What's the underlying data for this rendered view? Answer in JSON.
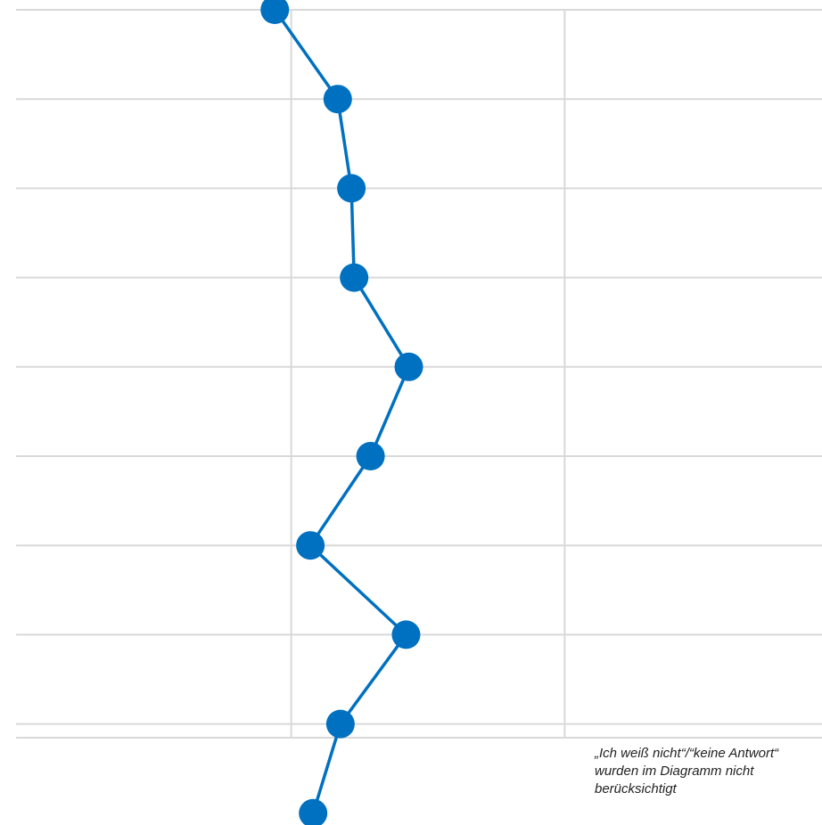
{
  "chart_data": {
    "type": "line",
    "orientation": "vertical-profile",
    "grid": true,
    "legend": "none",
    "series": [
      {
        "values": [
          -0.06,
          0.17,
          0.22,
          0.23,
          0.43,
          0.29,
          0.07,
          0.42,
          0.18,
          0.08
        ]
      }
    ],
    "x_range": [
      -1,
      2
    ],
    "vertical_gridlines_at": [
      0,
      1
    ],
    "colors": {
      "series": "#0070C0",
      "grid": "#D9D9D9"
    }
  },
  "note": {
    "lines": [
      "„Ich weiß nicht“/“keine Antwort“",
      "wurden im Diagramm nicht",
      "berücksichtigt"
    ]
  }
}
